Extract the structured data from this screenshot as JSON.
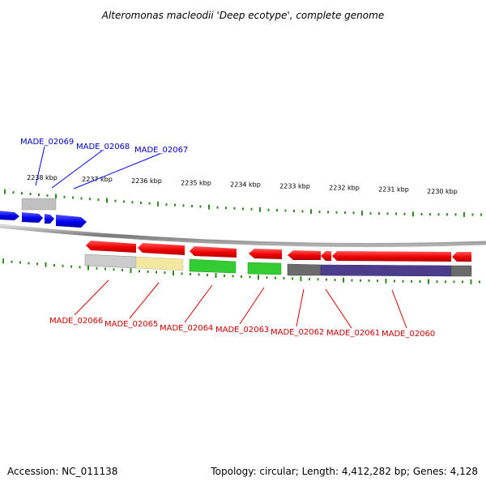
{
  "title": "Alteromonas macleodii 'Deep ecotype', complete genome",
  "footer": {
    "accession": "Accession: NC_011138",
    "summary": "Topology: circular; Length: 4,412,282 bp; Genes: 4,128"
  },
  "ticks": [
    "2238 kbp",
    "2237 kbp",
    "2236 kbp",
    "2235 kbp",
    "2234 kbp",
    "2233 kbp",
    "2232 kbp",
    "2231 kbp",
    "2230 kbp"
  ],
  "colors": {
    "forward_strand": "#0000ff",
    "reverse_strand": "#ff0000",
    "gc_skew": "#2e8b1e",
    "backbone": "#808080",
    "cog_gray": "#c8c8c8",
    "cog_yellow": "#f2e8a0",
    "cog_green": "#33cc33",
    "cog_dark": "#666666",
    "cog_purple": "#4b3c8c"
  },
  "genes_forward": [
    "MADE_02069",
    "MADE_02068",
    "MADE_02067"
  ],
  "genes_reverse": [
    "MADE_02066",
    "MADE_02065",
    "MADE_02064",
    "MADE_02063",
    "MADE_02062",
    "MADE_02061",
    "MADE_02060"
  ]
}
